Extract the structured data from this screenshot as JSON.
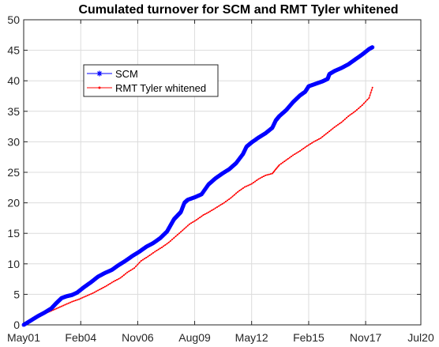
{
  "chart_data": {
    "type": "line",
    "title": "Cumulated turnover for SCM and RMT Tyler whitened",
    "xlabel": "",
    "ylabel": "",
    "x_unit": "date",
    "xlim": [
      "2001-05-01",
      "2020-07-01"
    ],
    "ylim": [
      0,
      50
    ],
    "x_ticks": [
      {
        "date": "2001-05-01",
        "label": "May01"
      },
      {
        "date": "2004-02-01",
        "label": "Feb04"
      },
      {
        "date": "2006-11-01",
        "label": "Nov06"
      },
      {
        "date": "2009-08-01",
        "label": "Aug09"
      },
      {
        "date": "2012-05-01",
        "label": "May12"
      },
      {
        "date": "2015-02-01",
        "label": "Feb15"
      },
      {
        "date": "2017-11-01",
        "label": "Nov17"
      },
      {
        "date": "2020-07-01",
        "label": "Jul20"
      }
    ],
    "y_ticks": [
      0,
      5,
      10,
      15,
      20,
      25,
      30,
      35,
      40,
      45,
      50
    ],
    "grid": true,
    "legend_position": "upper-left-inside",
    "series": [
      {
        "name": "SCM",
        "color": "#0000ff",
        "marker": "asterisk",
        "points": [
          [
            "2001-05-01",
            0.0
          ],
          [
            "2001-09-01",
            0.7
          ],
          [
            "2002-01-01",
            1.4
          ],
          [
            "2002-05-01",
            2.0
          ],
          [
            "2002-09-01",
            2.7
          ],
          [
            "2002-12-01",
            3.6
          ],
          [
            "2003-03-01",
            4.4
          ],
          [
            "2003-06-01",
            4.7
          ],
          [
            "2003-09-01",
            4.9
          ],
          [
            "2003-12-01",
            5.3
          ],
          [
            "2004-04-01",
            6.2
          ],
          [
            "2004-08-01",
            7.0
          ],
          [
            "2004-12-01",
            7.9
          ],
          [
            "2005-04-01",
            8.5
          ],
          [
            "2005-08-01",
            9.0
          ],
          [
            "2005-12-01",
            9.8
          ],
          [
            "2006-04-01",
            10.5
          ],
          [
            "2006-08-01",
            11.3
          ],
          [
            "2006-12-01",
            12.0
          ],
          [
            "2007-04-01",
            12.8
          ],
          [
            "2007-08-01",
            13.4
          ],
          [
            "2007-12-01",
            14.2
          ],
          [
            "2008-04-01",
            15.3
          ],
          [
            "2008-06-01",
            16.3
          ],
          [
            "2008-08-01",
            17.3
          ],
          [
            "2008-10-01",
            17.9
          ],
          [
            "2008-12-01",
            18.5
          ],
          [
            "2009-02-01",
            20.0
          ],
          [
            "2009-04-01",
            20.5
          ],
          [
            "2009-08-01",
            20.9
          ],
          [
            "2009-12-01",
            21.4
          ],
          [
            "2010-04-01",
            23.0
          ],
          [
            "2010-08-01",
            24.0
          ],
          [
            "2010-12-01",
            24.8
          ],
          [
            "2011-04-01",
            25.5
          ],
          [
            "2011-08-01",
            26.5
          ],
          [
            "2011-12-01",
            28.0
          ],
          [
            "2012-02-01",
            29.2
          ],
          [
            "2012-05-01",
            29.9
          ],
          [
            "2012-09-01",
            30.7
          ],
          [
            "2013-01-01",
            31.4
          ],
          [
            "2013-05-01",
            32.3
          ],
          [
            "2013-07-01",
            33.5
          ],
          [
            "2013-09-01",
            34.2
          ],
          [
            "2014-01-01",
            35.2
          ],
          [
            "2014-05-01",
            36.5
          ],
          [
            "2014-09-01",
            37.6
          ],
          [
            "2014-12-01",
            38.2
          ],
          [
            "2015-02-01",
            39.1
          ],
          [
            "2015-06-01",
            39.5
          ],
          [
            "2015-10-01",
            39.9
          ],
          [
            "2016-01-01",
            40.3
          ],
          [
            "2016-02-01",
            41.1
          ],
          [
            "2016-05-01",
            41.6
          ],
          [
            "2016-09-01",
            42.1
          ],
          [
            "2017-01-01",
            42.7
          ],
          [
            "2017-05-01",
            43.5
          ],
          [
            "2017-09-01",
            44.3
          ],
          [
            "2018-01-01",
            45.2
          ],
          [
            "2018-03-01",
            45.5
          ]
        ]
      },
      {
        "name": "RMT Tyler whitened",
        "color": "#ff0000",
        "marker": "point",
        "points": [
          [
            "2001-05-01",
            0.0
          ],
          [
            "2001-09-01",
            0.6
          ],
          [
            "2002-01-01",
            1.3
          ],
          [
            "2002-05-01",
            1.8
          ],
          [
            "2002-09-01",
            2.3
          ],
          [
            "2003-01-01",
            2.8
          ],
          [
            "2003-05-01",
            3.3
          ],
          [
            "2003-09-01",
            3.8
          ],
          [
            "2004-01-01",
            4.2
          ],
          [
            "2004-05-01",
            4.7
          ],
          [
            "2004-09-01",
            5.2
          ],
          [
            "2005-01-01",
            5.8
          ],
          [
            "2005-05-01",
            6.4
          ],
          [
            "2005-09-01",
            7.1
          ],
          [
            "2006-01-01",
            7.7
          ],
          [
            "2006-05-01",
            8.6
          ],
          [
            "2006-09-01",
            9.3
          ],
          [
            "2007-01-01",
            10.5
          ],
          [
            "2007-05-01",
            11.2
          ],
          [
            "2007-09-01",
            12.0
          ],
          [
            "2008-01-01",
            12.7
          ],
          [
            "2008-05-01",
            13.5
          ],
          [
            "2008-09-01",
            14.5
          ],
          [
            "2009-01-01",
            15.5
          ],
          [
            "2009-05-01",
            16.5
          ],
          [
            "2009-09-01",
            17.2
          ],
          [
            "2010-01-01",
            18.0
          ],
          [
            "2010-05-01",
            18.6
          ],
          [
            "2010-09-01",
            19.3
          ],
          [
            "2011-01-01",
            20.0
          ],
          [
            "2011-05-01",
            20.8
          ],
          [
            "2011-09-01",
            21.8
          ],
          [
            "2012-01-01",
            22.6
          ],
          [
            "2012-05-01",
            23.1
          ],
          [
            "2012-09-01",
            23.9
          ],
          [
            "2013-01-01",
            24.5
          ],
          [
            "2013-05-01",
            24.8
          ],
          [
            "2013-07-01",
            25.5
          ],
          [
            "2013-09-01",
            26.2
          ],
          [
            "2014-01-01",
            27.0
          ],
          [
            "2014-05-01",
            27.8
          ],
          [
            "2014-09-01",
            28.5
          ],
          [
            "2015-01-01",
            29.3
          ],
          [
            "2015-05-01",
            30.0
          ],
          [
            "2015-09-01",
            30.6
          ],
          [
            "2016-01-01",
            31.5
          ],
          [
            "2016-05-01",
            32.4
          ],
          [
            "2016-09-01",
            33.2
          ],
          [
            "2017-01-01",
            34.2
          ],
          [
            "2017-05-01",
            35.0
          ],
          [
            "2017-09-01",
            36.0
          ],
          [
            "2018-01-01",
            37.2
          ],
          [
            "2018-03-01",
            38.9
          ]
        ]
      }
    ]
  }
}
